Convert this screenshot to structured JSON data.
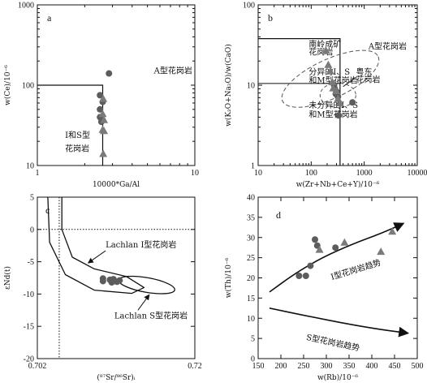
{
  "chart_data": [
    {
      "id": "a",
      "type": "scatter",
      "panel_label": "a",
      "xlabel": "10000*Ga/Al",
      "ylabel": "w(Ce)/10⁻⁶",
      "xscale": "log",
      "yscale": "log",
      "xlim": [
        1,
        10
      ],
      "ylim": [
        10,
        1000
      ],
      "xticks": [
        {
          "v": 1,
          "t": "1"
        },
        {
          "v": 10,
          "t": "10"
        }
      ],
      "yticks": [
        {
          "v": 10,
          "t": "10"
        },
        {
          "v": 100,
          "t": "100"
        },
        {
          "v": 1000,
          "t": "1000"
        }
      ],
      "field_boundary": {
        "x": 2.6,
        "y": 100
      },
      "labels": [
        {
          "text": "A型花岗岩",
          "x": 5.5,
          "y": 140
        },
        {
          "text": "I和S型",
          "x": 1.5,
          "y": 22
        },
        {
          "text": "花岗岩",
          "x": 1.5,
          "y": 15
        }
      ],
      "series": [
        {
          "marker": "circle",
          "points": [
            [
              2.85,
              140
            ],
            [
              2.5,
              75
            ],
            [
              2.6,
              62
            ],
            [
              2.5,
              50
            ],
            [
              2.5,
              40
            ],
            [
              2.55,
              35
            ]
          ]
        },
        {
          "marker": "triangle",
          "points": [
            [
              2.62,
              68
            ],
            [
              2.6,
              44
            ],
            [
              2.65,
              37
            ],
            [
              2.6,
              28
            ],
            [
              2.65,
              27
            ],
            [
              2.62,
              14
            ]
          ]
        }
      ]
    },
    {
      "id": "b",
      "type": "scatter",
      "panel_label": "b",
      "xlabel": "w(Zr+Nb+Ce+Y)/10⁻⁶",
      "ylabel": "w(K₂O+Na₂O)/w(CaO)",
      "xscale": "log",
      "yscale": "log",
      "xlim": [
        10,
        10000
      ],
      "ylim": [
        1,
        100
      ],
      "xticks": [
        {
          "v": 10,
          "t": "10"
        },
        {
          "v": 100,
          "t": "100"
        },
        {
          "v": 1000,
          "t": "1000"
        },
        {
          "v": 10000,
          "t": "10000"
        }
      ],
      "yticks": [
        {
          "v": 1,
          "t": "1"
        },
        {
          "v": 10,
          "t": "10"
        },
        {
          "v": 100,
          "t": "100"
        }
      ],
      "field_boundary": {
        "x": 350,
        "y": 38,
        "y_lower": 10.5
      },
      "labels": [
        {
          "text": "A型花岗岩",
          "x": 1200,
          "y": 28
        },
        {
          "text": "南岭成矿",
          "x": 90,
          "y": 30
        },
        {
          "text": "花岗岩",
          "x": 90,
          "y": 24
        },
        {
          "text": "分异的I、S",
          "x": 90,
          "y": 13.5
        },
        {
          "text": "和M型花岗岩",
          "x": 90,
          "y": 10.6
        },
        {
          "text": "未分异的I、S",
          "x": 90,
          "y": 5.2
        },
        {
          "text": "和M型花岗岩",
          "x": 90,
          "y": 4.0
        },
        {
          "text": "粤东",
          "x": 700,
          "y": 13.5
        },
        {
          "text": "花岗岩",
          "x": 700,
          "y": 10.8
        }
      ],
      "series": [
        {
          "marker": "circle",
          "points": [
            [
              270,
              10
            ],
            [
              280,
              9
            ],
            [
              300,
              8.3
            ],
            [
              310,
              7.5
            ],
            [
              320,
              7.2
            ],
            [
              290,
              7.8
            ],
            [
              330,
              4.2
            ],
            [
              600,
              6.1
            ]
          ]
        },
        {
          "marker": "triangle",
          "points": [
            [
              190,
              27
            ],
            [
              210,
              18
            ],
            [
              230,
              15
            ],
            [
              250,
              11
            ],
            [
              260,
              9.2
            ],
            [
              300,
              8.5
            ],
            [
              320,
              6.8
            ],
            [
              350,
              6
            ]
          ]
        }
      ]
    },
    {
      "id": "c",
      "type": "scatter",
      "panel_label": "c",
      "xlabel": "(⁸⁷Sr/⁸⁶Sr)ᵢ",
      "ylabel": "εNd(t)",
      "xlim": [
        0.702,
        0.72
      ],
      "ylim": [
        -20,
        5
      ],
      "xticks": [
        {
          "v": 0.702,
          "t": "0.702"
        },
        {
          "v": 0.72,
          "t": "0.72"
        }
      ],
      "yticks": [
        {
          "v": 5,
          "t": "5"
        },
        {
          "v": 0,
          "t": "0"
        },
        {
          "v": -5,
          "t": "-5"
        },
        {
          "v": -10,
          "t": "-10"
        },
        {
          "v": -15,
          "t": "-15"
        },
        {
          "v": -20,
          "t": "-20"
        }
      ],
      "reference_lines": {
        "x": 0.7045,
        "y": 0
      },
      "labels": [
        {
          "text": "Lachlan I型花岗岩"
        },
        {
          "text": "Lachlan S型花岗岩"
        }
      ],
      "series": [
        {
          "marker": "circle",
          "points": [
            [
              0.7095,
              -7.6
            ],
            [
              0.7095,
              -8
            ],
            [
              0.7103,
              -7.8
            ],
            [
              0.7105,
              -8.2
            ],
            [
              0.7107,
              -7.7
            ],
            [
              0.7111,
              -8.1
            ],
            [
              0.7114,
              -7.9
            ]
          ]
        }
      ]
    },
    {
      "id": "d",
      "type": "scatter",
      "panel_label": "d",
      "xlabel": "w(Rb)/10⁻⁶",
      "ylabel": "w(Th)/10⁻⁶",
      "xlim": [
        150,
        500
      ],
      "ylim": [
        0,
        40
      ],
      "xticks": [
        {
          "v": 150,
          "t": "150"
        },
        {
          "v": 200,
          "t": "200"
        },
        {
          "v": 250,
          "t": "250"
        },
        {
          "v": 300,
          "t": "300"
        },
        {
          "v": 350,
          "t": "350"
        },
        {
          "v": 400,
          "t": "400"
        },
        {
          "v": 450,
          "t": "450"
        },
        {
          "v": 500,
          "t": "500"
        }
      ],
      "yticks": [
        {
          "v": 0,
          "t": "0"
        },
        {
          "v": 5,
          "t": "5"
        },
        {
          "v": 10,
          "t": "10"
        },
        {
          "v": 15,
          "t": "15"
        },
        {
          "v": 20,
          "t": "20"
        },
        {
          "v": 25,
          "t": "25"
        },
        {
          "v": 30,
          "t": "30"
        },
        {
          "v": 35,
          "t": "35"
        },
        {
          "v": 40,
          "t": "40"
        }
      ],
      "labels": [
        {
          "text": "I型花岗岩趋势"
        },
        {
          "text": "S型花岗岩趋势"
        }
      ],
      "trends": [
        {
          "name": "I",
          "points": [
            [
              175,
              16.5
            ],
            [
              230,
              21
            ],
            [
              290,
              25
            ],
            [
              360,
              28.5
            ],
            [
              420,
              31
            ],
            [
              470,
              33.5
            ]
          ]
        },
        {
          "name": "S",
          "points": [
            [
              175,
              12.5
            ],
            [
              260,
              10.5
            ],
            [
              350,
              8.5
            ],
            [
              420,
              7.2
            ],
            [
              480,
              6.3
            ]
          ]
        }
      ],
      "series": [
        {
          "marker": "circle",
          "points": [
            [
              240,
              20.5
            ],
            [
              255,
              20.5
            ],
            [
              265,
              23
            ],
            [
              275,
              29.5
            ],
            [
              280,
              28
            ],
            [
              320,
              27.5
            ]
          ]
        },
        {
          "marker": "triangle",
          "points": [
            [
              285,
              27
            ],
            [
              340,
              28.8
            ],
            [
              420,
              26.5
            ],
            [
              445,
              31.5
            ]
          ]
        }
      ]
    }
  ]
}
